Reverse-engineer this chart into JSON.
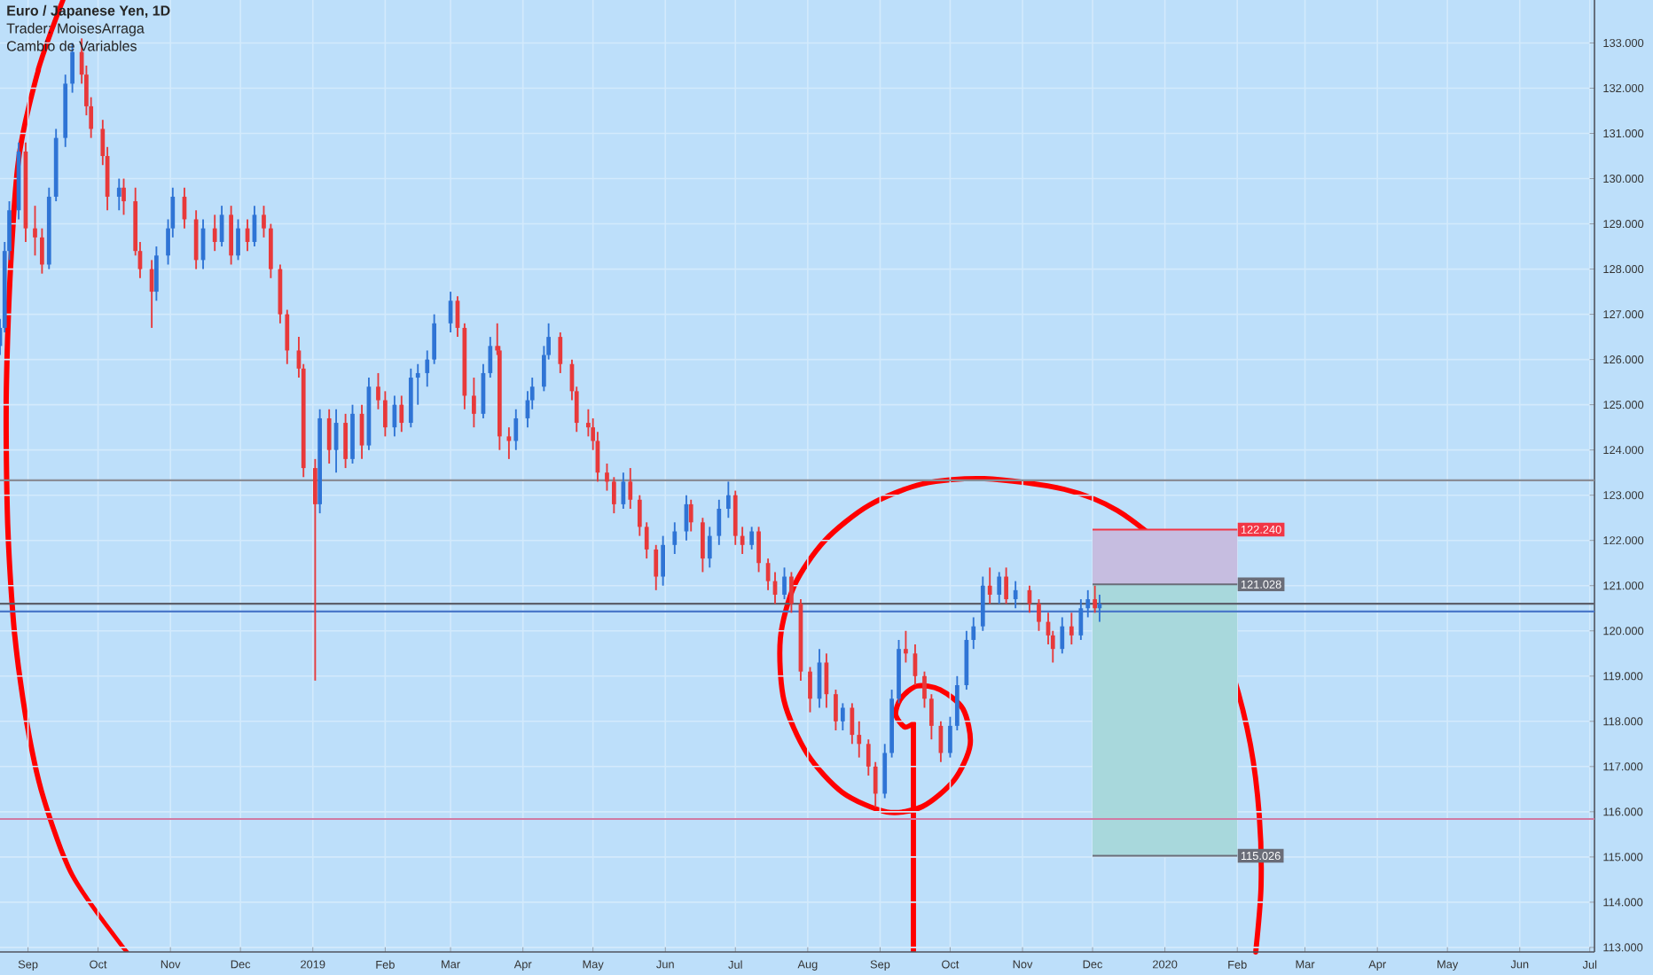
{
  "chart_data": {
    "type": "candlestick",
    "title": "Euro / Japanese Yen, 1D",
    "subtitle": "Trader: MoisesArraga",
    "annotations": [
      "Cambio de Variables"
    ],
    "x": [
      "2018-08-20",
      "2018-08-22",
      "2018-08-24",
      "2018-08-28",
      "2018-08-31",
      "2018-09-04",
      "2018-09-07",
      "2018-09-10",
      "2018-09-13",
      "2018-09-17",
      "2018-09-20",
      "2018-09-24",
      "2018-09-26",
      "2018-09-28",
      "2018-10-03",
      "2018-10-05",
      "2018-10-10",
      "2018-10-12",
      "2018-10-17",
      "2018-10-19",
      "2018-10-24",
      "2018-10-26",
      "2018-10-31",
      "2018-11-02",
      "2018-11-07",
      "2018-11-12",
      "2018-11-15",
      "2018-11-20",
      "2018-11-23",
      "2018-11-27",
      "2018-11-30",
      "2018-12-04",
      "2018-12-07",
      "2018-12-11",
      "2018-12-14",
      "2018-12-18",
      "2018-12-21",
      "2018-12-26",
      "2018-12-28",
      "2019-01-02",
      "2019-01-04",
      "2019-01-08",
      "2019-01-11",
      "2019-01-15",
      "2019-01-18",
      "2019-01-22",
      "2019-01-25",
      "2019-01-29",
      "2019-02-01",
      "2019-02-05",
      "2019-02-08",
      "2019-02-12",
      "2019-02-15",
      "2019-02-19",
      "2019-02-22",
      "2019-03-01",
      "2019-03-04",
      "2019-03-07",
      "2019-03-11",
      "2019-03-15",
      "2019-03-18",
      "2019-03-21",
      "2019-03-22",
      "2019-03-26",
      "2019-03-29",
      "2019-04-03",
      "2019-04-05",
      "2019-04-10",
      "2019-04-12",
      "2019-04-17",
      "2019-04-22",
      "2019-04-24",
      "2019-04-29",
      "2019-05-01",
      "2019-05-03",
      "2019-05-07",
      "2019-05-10",
      "2019-05-14",
      "2019-05-17",
      "2019-05-21",
      "2019-05-24",
      "2019-05-28",
      "2019-05-31",
      "2019-06-05",
      "2019-06-10",
      "2019-06-12",
      "2019-06-17",
      "2019-06-20",
      "2019-06-24",
      "2019-06-28",
      "2019-07-01",
      "2019-07-04",
      "2019-07-08",
      "2019-07-11",
      "2019-07-15",
      "2019-07-18",
      "2019-07-22",
      "2019-07-25",
      "2019-07-29",
      "2019-08-02",
      "2019-08-06",
      "2019-08-09",
      "2019-08-13",
      "2019-08-16",
      "2019-08-20",
      "2019-08-23",
      "2019-08-27",
      "2019-08-30",
      "2019-09-03",
      "2019-09-06",
      "2019-09-09",
      "2019-09-12",
      "2019-09-16",
      "2019-09-20",
      "2019-09-23",
      "2019-09-27",
      "2019-10-01",
      "2019-10-04",
      "2019-10-08",
      "2019-10-11",
      "2019-10-15",
      "2019-10-18",
      "2019-10-22",
      "2019-10-25",
      "2019-10-29",
      "2019-11-04",
      "2019-11-08",
      "2019-11-12",
      "2019-11-14",
      "2019-11-18",
      "2019-11-22",
      "2019-11-26",
      "2019-11-29",
      "2019-12-02",
      "2019-12-04"
    ],
    "ohlc": [
      [
        126.3,
        126.9,
        126.1,
        126.7
      ],
      [
        126.7,
        128.6,
        126.6,
        128.4
      ],
      [
        128.4,
        129.5,
        128.2,
        129.3
      ],
      [
        129.3,
        130.8,
        129.1,
        130.6
      ],
      [
        130.6,
        130.8,
        128.6,
        128.9
      ],
      [
        128.9,
        129.4,
        128.3,
        128.7
      ],
      [
        128.7,
        128.9,
        127.9,
        128.1
      ],
      [
        128.1,
        129.8,
        128.0,
        129.6
      ],
      [
        129.6,
        131.1,
        129.5,
        130.9
      ],
      [
        130.9,
        132.3,
        130.7,
        132.1
      ],
      [
        132.1,
        133.0,
        131.9,
        132.8
      ],
      [
        132.8,
        133.1,
        132.1,
        132.3
      ],
      [
        132.3,
        132.5,
        131.4,
        131.6
      ],
      [
        131.6,
        131.8,
        130.9,
        131.1
      ],
      [
        131.1,
        131.3,
        130.3,
        130.5
      ],
      [
        130.5,
        130.7,
        129.3,
        129.6
      ],
      [
        129.6,
        130.0,
        129.3,
        129.8
      ],
      [
        129.8,
        130.0,
        129.2,
        129.5
      ],
      [
        129.5,
        129.8,
        128.3,
        128.4
      ],
      [
        128.4,
        128.6,
        127.8,
        128.0
      ],
      [
        128.0,
        128.2,
        126.7,
        127.5
      ],
      [
        127.5,
        128.5,
        127.3,
        128.3
      ],
      [
        128.3,
        129.1,
        128.1,
        128.9
      ],
      [
        128.9,
        129.8,
        128.7,
        129.6
      ],
      [
        129.6,
        129.8,
        128.9,
        129.1
      ],
      [
        129.1,
        129.3,
        128.0,
        128.2
      ],
      [
        128.2,
        129.1,
        128.0,
        128.9
      ],
      [
        128.9,
        129.2,
        128.4,
        128.6
      ],
      [
        128.6,
        129.4,
        128.5,
        129.2
      ],
      [
        129.2,
        129.4,
        128.1,
        128.3
      ],
      [
        128.3,
        129.1,
        128.2,
        128.9
      ],
      [
        128.9,
        129.1,
        128.4,
        128.6
      ],
      [
        128.6,
        129.4,
        128.5,
        129.2
      ],
      [
        129.2,
        129.4,
        128.7,
        128.9
      ],
      [
        128.9,
        129.0,
        127.8,
        128.0
      ],
      [
        128.0,
        128.1,
        126.8,
        127.0
      ],
      [
        127.0,
        127.1,
        125.9,
        126.2
      ],
      [
        126.2,
        126.5,
        125.6,
        125.8
      ],
      [
        125.8,
        125.9,
        123.4,
        123.6
      ],
      [
        123.6,
        123.8,
        118.9,
        122.8
      ],
      [
        122.8,
        124.9,
        122.6,
        124.7
      ],
      [
        124.7,
        124.9,
        123.7,
        124.0
      ],
      [
        124.0,
        124.9,
        123.5,
        124.6
      ],
      [
        124.6,
        124.8,
        123.6,
        123.8
      ],
      [
        123.8,
        125.0,
        123.7,
        124.8
      ],
      [
        124.8,
        125.0,
        123.8,
        124.1
      ],
      [
        124.1,
        125.6,
        124.0,
        125.4
      ],
      [
        125.4,
        125.7,
        124.9,
        125.1
      ],
      [
        125.1,
        125.3,
        124.3,
        124.5
      ],
      [
        124.5,
        125.2,
        124.3,
        125.0
      ],
      [
        125.0,
        125.2,
        124.4,
        124.6
      ],
      [
        124.6,
        125.8,
        124.5,
        125.6
      ],
      [
        125.6,
        125.9,
        125.0,
        125.7
      ],
      [
        125.7,
        126.2,
        125.4,
        126.0
      ],
      [
        126.0,
        127.0,
        125.9,
        126.8
      ],
      [
        126.8,
        127.5,
        126.6,
        127.3
      ],
      [
        127.3,
        127.4,
        126.5,
        126.7
      ],
      [
        126.7,
        126.8,
        124.9,
        125.2
      ],
      [
        125.2,
        125.6,
        124.5,
        124.8
      ],
      [
        124.8,
        125.9,
        124.7,
        125.7
      ],
      [
        125.7,
        126.5,
        125.6,
        126.3
      ],
      [
        126.3,
        126.8,
        126.1,
        126.2
      ],
      [
        126.2,
        126.3,
        124.0,
        124.3
      ],
      [
        124.3,
        124.5,
        123.8,
        124.2
      ],
      [
        124.2,
        124.9,
        124.0,
        124.7
      ],
      [
        124.7,
        125.3,
        124.5,
        125.1
      ],
      [
        125.1,
        125.6,
        124.9,
        125.4
      ],
      [
        125.4,
        126.3,
        125.3,
        126.1
      ],
      [
        126.1,
        126.8,
        126.0,
        126.5
      ],
      [
        126.5,
        126.6,
        125.7,
        125.9
      ],
      [
        125.9,
        126.0,
        125.1,
        125.3
      ],
      [
        125.3,
        125.4,
        124.4,
        124.6
      ],
      [
        124.6,
        124.9,
        124.3,
        124.5
      ],
      [
        124.5,
        124.7,
        124.0,
        124.2
      ],
      [
        124.2,
        124.4,
        123.3,
        123.5
      ],
      [
        123.5,
        123.7,
        123.1,
        123.3
      ],
      [
        123.3,
        123.4,
        122.6,
        122.8
      ],
      [
        122.8,
        123.5,
        122.7,
        123.3
      ],
      [
        123.3,
        123.6,
        122.7,
        122.9
      ],
      [
        122.9,
        123.0,
        122.1,
        122.3
      ],
      [
        122.3,
        122.4,
        121.6,
        121.8
      ],
      [
        121.8,
        121.9,
        120.9,
        121.2
      ],
      [
        121.2,
        122.1,
        121.0,
        121.9
      ],
      [
        121.9,
        122.4,
        121.7,
        122.2
      ],
      [
        122.2,
        123.0,
        122.0,
        122.8
      ],
      [
        122.8,
        122.9,
        122.2,
        122.4
      ],
      [
        122.4,
        122.5,
        121.3,
        121.6
      ],
      [
        121.6,
        122.3,
        121.4,
        122.1
      ],
      [
        122.1,
        122.9,
        121.9,
        122.7
      ],
      [
        122.7,
        123.3,
        122.5,
        123.0
      ],
      [
        123.0,
        123.1,
        121.9,
        122.1
      ],
      [
        122.1,
        122.3,
        121.7,
        121.9
      ],
      [
        121.9,
        122.3,
        121.8,
        122.2
      ],
      [
        122.2,
        122.3,
        121.3,
        121.5
      ],
      [
        121.5,
        121.6,
        120.9,
        121.1
      ],
      [
        121.1,
        121.3,
        120.6,
        120.8
      ],
      [
        120.8,
        121.4,
        120.7,
        121.2
      ],
      [
        121.2,
        121.3,
        120.4,
        120.6
      ],
      [
        120.6,
        120.7,
        118.9,
        119.1
      ],
      [
        119.1,
        119.2,
        118.2,
        118.5
      ],
      [
        118.5,
        119.6,
        118.3,
        119.3
      ],
      [
        119.3,
        119.5,
        118.3,
        118.6
      ],
      [
        118.6,
        118.7,
        117.8,
        118.0
      ],
      [
        118.0,
        118.4,
        117.8,
        118.3
      ],
      [
        118.3,
        118.4,
        117.5,
        117.7
      ],
      [
        117.7,
        118.0,
        117.2,
        117.5
      ],
      [
        117.5,
        117.6,
        116.8,
        117.0
      ],
      [
        117.0,
        117.1,
        116.1,
        116.4
      ],
      [
        116.4,
        117.5,
        116.3,
        117.3
      ],
      [
        117.3,
        118.7,
        117.2,
        118.5
      ],
      [
        118.5,
        119.8,
        118.4,
        119.6
      ],
      [
        119.6,
        120.0,
        119.3,
        119.5
      ],
      [
        119.5,
        119.7,
        118.8,
        119.0
      ],
      [
        119.0,
        119.1,
        118.3,
        118.5
      ],
      [
        118.5,
        118.6,
        117.6,
        117.9
      ],
      [
        117.9,
        118.0,
        117.1,
        117.3
      ],
      [
        117.3,
        118.1,
        117.2,
        117.9
      ],
      [
        117.9,
        119.0,
        117.8,
        118.8
      ],
      [
        118.8,
        120.0,
        118.7,
        119.8
      ],
      [
        119.8,
        120.3,
        119.6,
        120.1
      ],
      [
        120.1,
        121.2,
        120.0,
        121.0
      ],
      [
        121.0,
        121.4,
        120.6,
        120.8
      ],
      [
        120.8,
        121.3,
        120.6,
        121.2
      ],
      [
        121.2,
        121.4,
        120.6,
        120.7
      ],
      [
        120.7,
        121.1,
        120.5,
        120.9
      ],
      [
        120.9,
        121.0,
        120.4,
        120.6
      ],
      [
        120.6,
        120.7,
        120.0,
        120.2
      ],
      [
        120.2,
        120.4,
        119.7,
        119.9
      ],
      [
        119.9,
        120.0,
        119.3,
        119.6
      ],
      [
        119.6,
        120.3,
        119.5,
        120.1
      ],
      [
        120.1,
        120.4,
        119.7,
        119.9
      ],
      [
        119.9,
        120.7,
        119.8,
        120.5
      ],
      [
        120.5,
        120.9,
        120.3,
        120.7
      ],
      [
        120.7,
        121.0,
        120.4,
        120.5
      ],
      [
        120.5,
        120.8,
        120.2,
        120.6
      ]
    ],
    "xlim": [
      "2018-08-20",
      "2020-07-03"
    ],
    "ylim": [
      112.9,
      133.95
    ],
    "xticks": [
      {
        "value": "2018-09-01",
        "label": "Sep"
      },
      {
        "value": "2018-10-01",
        "label": "Oct"
      },
      {
        "value": "2018-11-01",
        "label": "Nov"
      },
      {
        "value": "2018-12-01",
        "label": "Dec"
      },
      {
        "value": "2019-01-01",
        "label": "2019"
      },
      {
        "value": "2019-02-01",
        "label": "Feb"
      },
      {
        "value": "2019-03-01",
        "label": "Mar"
      },
      {
        "value": "2019-04-01",
        "label": "Apr"
      },
      {
        "value": "2019-05-01",
        "label": "May"
      },
      {
        "value": "2019-06-01",
        "label": "Jun"
      },
      {
        "value": "2019-07-01",
        "label": "Jul"
      },
      {
        "value": "2019-08-01",
        "label": "Aug"
      },
      {
        "value": "2019-09-01",
        "label": "Sep"
      },
      {
        "value": "2019-10-01",
        "label": "Oct"
      },
      {
        "value": "2019-11-01",
        "label": "Nov"
      },
      {
        "value": "2019-12-01",
        "label": "Dec"
      },
      {
        "value": "2020-01-01",
        "label": "2020"
      },
      {
        "value": "2020-02-01",
        "label": "Feb"
      },
      {
        "value": "2020-03-01",
        "label": "Mar"
      },
      {
        "value": "2020-04-01",
        "label": "Apr"
      },
      {
        "value": "2020-05-01",
        "label": "May"
      },
      {
        "value": "2020-06-01",
        "label": "Jun"
      },
      {
        "value": "2020-07-01",
        "label": "Jul"
      }
    ],
    "yticks": [
      {
        "value": 113,
        "label": "113.000"
      },
      {
        "value": 114,
        "label": "114.000"
      },
      {
        "value": 115,
        "label": "115.000"
      },
      {
        "value": 116,
        "label": "116.000"
      },
      {
        "value": 117,
        "label": "117.000"
      },
      {
        "value": 118,
        "label": "118.000"
      },
      {
        "value": 119,
        "label": "119.000"
      },
      {
        "value": 120,
        "label": "120.000"
      },
      {
        "value": 121,
        "label": "121.000"
      },
      {
        "value": 122,
        "label": "122.000"
      },
      {
        "value": 123,
        "label": "123.000"
      },
      {
        "value": 124,
        "label": "124.000"
      },
      {
        "value": 125,
        "label": "125.000"
      },
      {
        "value": 126,
        "label": "126.000"
      },
      {
        "value": 127,
        "label": "127.000"
      },
      {
        "value": 128,
        "label": "128.000"
      },
      {
        "value": 129,
        "label": "129.000"
      },
      {
        "value": 130,
        "label": "130.000"
      },
      {
        "value": 131,
        "label": "131.000"
      },
      {
        "value": 132,
        "label": "132.000"
      },
      {
        "value": 133,
        "label": "133.000"
      }
    ],
    "ref_lines": [
      {
        "axis": "y",
        "value": 120.6,
        "color": "#5d606b"
      },
      {
        "axis": "y",
        "value": 120.43,
        "color": "#4a78c9"
      },
      {
        "axis": "y",
        "value": 123.33,
        "color": "#8a8d96"
      },
      {
        "axis": "y",
        "value": 115.84,
        "color": "#d07aa4"
      },
      {
        "axis": "y",
        "value": 122.24,
        "label": "122.240",
        "color": "#f23645"
      },
      {
        "axis": "y",
        "value": 121.028,
        "label": "121.028",
        "color": "#6a6d78"
      },
      {
        "axis": "y",
        "value": 115.026,
        "label": "115.026",
        "color": "#6a6d78"
      }
    ],
    "bands": [
      {
        "axis": "y",
        "from": 121.028,
        "to": 122.24,
        "color": "#c6bde0"
      },
      {
        "axis": "y",
        "from": 115.026,
        "to": 121.028,
        "color": "#a8d8dc"
      }
    ],
    "grid": true
  }
}
